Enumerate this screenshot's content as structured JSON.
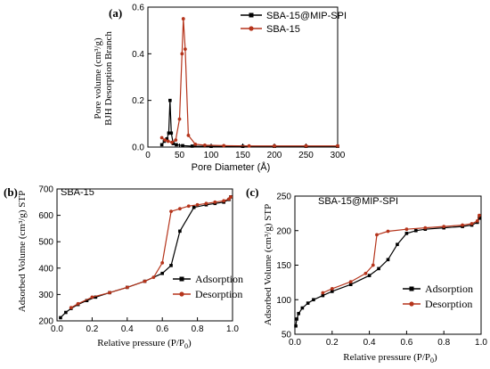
{
  "chart_data": [
    {
      "panel": "(a)",
      "type": "line",
      "xlabel": "Pore Diameter (Å)",
      "ylabel_line1": "BJH Desorption Branch",
      "ylabel_line2": "Pore volume (cm³/g)",
      "xlim": [
        0,
        300
      ],
      "ylim": [
        0,
        0.6
      ],
      "xticks": [
        "0",
        "50",
        "100",
        "150",
        "200",
        "250",
        "300"
      ],
      "yticks": [
        "0.0",
        "0.2",
        "0.4",
        "0.6"
      ],
      "legend_position": "top-right",
      "series": [
        {
          "name": "SBA-15@MIP-SPI",
          "color": "#000000",
          "marker": "square",
          "x": [
            22,
            26,
            30,
            33,
            35,
            37,
            40,
            45,
            55,
            70,
            100,
            150,
            200,
            250,
            300
          ],
          "y": [
            0.01,
            0.025,
            0.035,
            0.06,
            0.2,
            0.06,
            0.015,
            0.01,
            0.006,
            0.004,
            0.003,
            0.003,
            0.003,
            0.003,
            0.003
          ]
        },
        {
          "name": "SBA-15",
          "color": "#b5341b",
          "marker": "circle",
          "x": [
            22,
            27,
            32,
            38,
            44,
            50,
            54,
            56,
            59,
            64,
            75,
            90,
            120,
            160,
            200,
            250,
            300
          ],
          "y": [
            0.04,
            0.03,
            0.025,
            0.02,
            0.03,
            0.12,
            0.4,
            0.55,
            0.42,
            0.05,
            0.012,
            0.008,
            0.006,
            0.005,
            0.005,
            0.005,
            0.005
          ]
        }
      ]
    },
    {
      "panel": "(b)",
      "title": "SBA-15",
      "type": "line",
      "xlabel_main": "Relative pressure (P/P",
      "xlabel_sub": "0",
      "xlabel_end": ")",
      "ylabel": "Adsorbed Volume (cm³/g) STP",
      "xlim": [
        0,
        1.0
      ],
      "ylim": [
        200,
        700
      ],
      "xticks": [
        "0.0",
        "0.2",
        "0.4",
        "0.6",
        "0.8",
        "1.0"
      ],
      "yticks": [
        "200",
        "300",
        "400",
        "500",
        "600",
        "700"
      ],
      "legend_position": "bottom-right",
      "series": [
        {
          "name": "Adsorption",
          "color": "#000000",
          "marker": "square",
          "x": [
            0.02,
            0.05,
            0.08,
            0.12,
            0.17,
            0.22,
            0.3,
            0.4,
            0.5,
            0.6,
            0.65,
            0.7,
            0.78,
            0.85,
            0.9,
            0.95,
            0.98,
            0.99
          ],
          "y": [
            212,
            232,
            247,
            262,
            277,
            290,
            307,
            327,
            350,
            380,
            410,
            540,
            630,
            640,
            645,
            650,
            660,
            670
          ]
        },
        {
          "name": "Desorption",
          "color": "#b5341b",
          "marker": "circle",
          "x": [
            0.99,
            0.98,
            0.95,
            0.9,
            0.85,
            0.8,
            0.75,
            0.7,
            0.65,
            0.6,
            0.55,
            0.5,
            0.4,
            0.3,
            0.2,
            0.12,
            0.08
          ],
          "y": [
            670,
            662,
            655,
            650,
            645,
            640,
            635,
            625,
            615,
            420,
            365,
            350,
            327,
            307,
            290,
            265,
            250
          ]
        }
      ]
    },
    {
      "panel": "(c)",
      "title": "SBA-15@MIP-SPI",
      "type": "line",
      "xlabel_main": "Relative pressure (P/P",
      "xlabel_sub": "0",
      "xlabel_end": ")",
      "ylabel": "Adsorbed Volume (cm³/g) STP",
      "xlim": [
        0,
        1.0
      ],
      "ylim": [
        50,
        250
      ],
      "xticks": [
        "0.0",
        "0.2",
        "0.4",
        "0.6",
        "0.8",
        "1.0"
      ],
      "yticks": [
        "50",
        "100",
        "150",
        "200",
        "250"
      ],
      "legend_position": "bottom-right",
      "series": [
        {
          "name": "Adsorption",
          "color": "#000000",
          "marker": "square",
          "x": [
            0.005,
            0.01,
            0.02,
            0.04,
            0.07,
            0.1,
            0.15,
            0.2,
            0.3,
            0.4,
            0.45,
            0.5,
            0.55,
            0.6,
            0.65,
            0.7,
            0.8,
            0.9,
            0.95,
            0.98,
            0.99
          ],
          "y": [
            62,
            72,
            80,
            88,
            95,
            100,
            106,
            112,
            122,
            135,
            145,
            158,
            180,
            196,
            200,
            202,
            204,
            206,
            208,
            212,
            218
          ]
        },
        {
          "name": "Desorption",
          "color": "#b5341b",
          "marker": "circle",
          "x": [
            0.99,
            0.98,
            0.95,
            0.9,
            0.8,
            0.7,
            0.6,
            0.5,
            0.44,
            0.42,
            0.38,
            0.3,
            0.2,
            0.15
          ],
          "y": [
            222,
            214,
            210,
            208,
            206,
            204,
            202,
            199,
            194,
            150,
            138,
            126,
            116,
            110
          ]
        }
      ]
    }
  ]
}
